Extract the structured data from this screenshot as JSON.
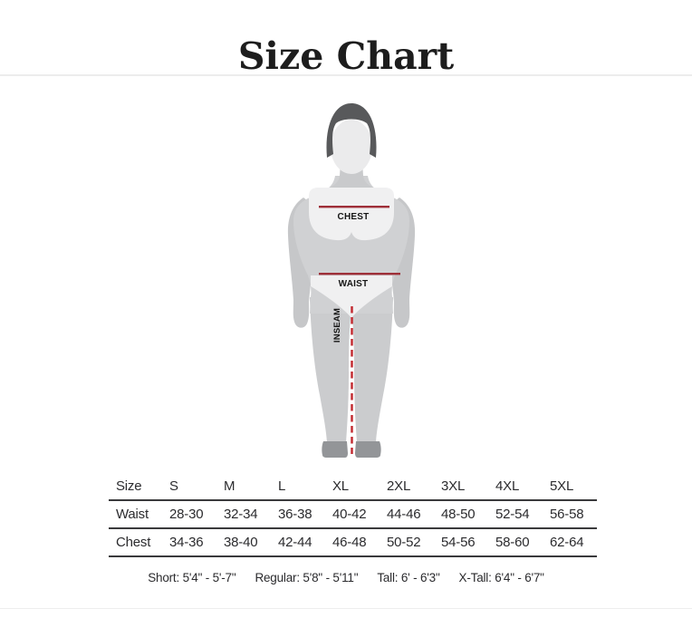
{
  "page": {
    "title": "Size Chart"
  },
  "diagram": {
    "labels": {
      "chest": "CHEST",
      "waist": "WAIST",
      "inseam": "INSEAM"
    },
    "colors": {
      "measure_line": "#9e2f38",
      "inseam_dash": "#c1272d",
      "hair": "#58595b",
      "face": "#ebebec",
      "neck": "#c9cacc",
      "torso": "#d0d1d3",
      "arms": "#c6c7c9",
      "panel": "#f0f0f1",
      "legs": "#cbccce",
      "shoes": "#939598"
    }
  },
  "table": {
    "columns": [
      "Size",
      "S",
      "M",
      "L",
      "XL",
      "2XL",
      "3XL",
      "4XL",
      "5XL"
    ],
    "rows": [
      {
        "label": "Waist",
        "values": [
          "28-30",
          "32-34",
          "36-38",
          "40-42",
          "44-46",
          "48-50",
          "52-54",
          "56-58"
        ]
      },
      {
        "label": "Chest",
        "values": [
          "34-36",
          "38-40",
          "42-44",
          "46-48",
          "50-52",
          "54-56",
          "58-60",
          "62-64"
        ]
      }
    ]
  },
  "footer": {
    "items": [
      "Short: 5'4\" - 5'-7\"",
      "Regular: 5'8\" - 5'11\"",
      "Tall: 6' - 6'3\"",
      "X-Tall: 6'4\" - 6'7\""
    ]
  }
}
